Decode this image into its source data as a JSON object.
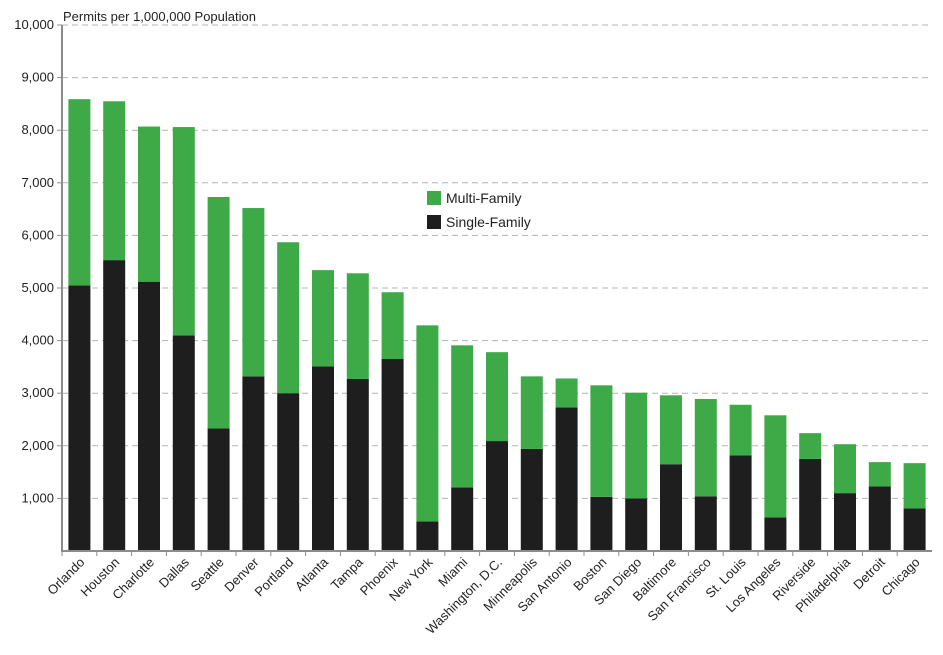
{
  "chart_data": {
    "type": "bar",
    "stacked": true,
    "ylabel": "Permits per 1,000,000 Population",
    "ylim": [
      0,
      10000
    ],
    "yticks": [
      1000,
      2000,
      3000,
      4000,
      5000,
      6000,
      7000,
      8000,
      9000,
      10000
    ],
    "ytick_labels": [
      "1,000",
      "2,000",
      "3,000",
      "4,000",
      "5,000",
      "6,000",
      "7,000",
      "8,000",
      "9,000",
      "10,000"
    ],
    "grid": "dashed horizontal",
    "legend_position": "center",
    "categories": [
      "Orlando",
      "Houston",
      "Charlotte",
      "Dallas",
      "Seattle",
      "Denver",
      "Portland",
      "Atlanta",
      "Tampa",
      "Phoenix",
      "New York",
      "Miami",
      "Washington, D.C.",
      "Minneapolis",
      "San Antonio",
      "Boston",
      "San Diego",
      "Baltimore",
      "San Francisco",
      "St. Louis",
      "Los Angeles",
      "Riverside",
      "Philadelphia",
      "Detroit",
      "Chicago"
    ],
    "series": [
      {
        "name": "Single-Family",
        "color": "#1e1e1e",
        "values": [
          5050,
          5530,
          5120,
          4100,
          2330,
          3320,
          3000,
          3510,
          3270,
          3650,
          560,
          1210,
          2090,
          1940,
          2730,
          1030,
          1000,
          1650,
          1040,
          1820,
          640,
          1750,
          1100,
          1230,
          810
        ]
      },
      {
        "name": "Multi-Family",
        "color": "#3daa47",
        "values": [
          3540,
          3020,
          2950,
          3960,
          4400,
          3200,
          2870,
          1830,
          2010,
          1270,
          3730,
          2700,
          1690,
          1380,
          550,
          2120,
          2010,
          1310,
          1850,
          960,
          1940,
          490,
          930,
          460,
          860
        ]
      }
    ]
  }
}
